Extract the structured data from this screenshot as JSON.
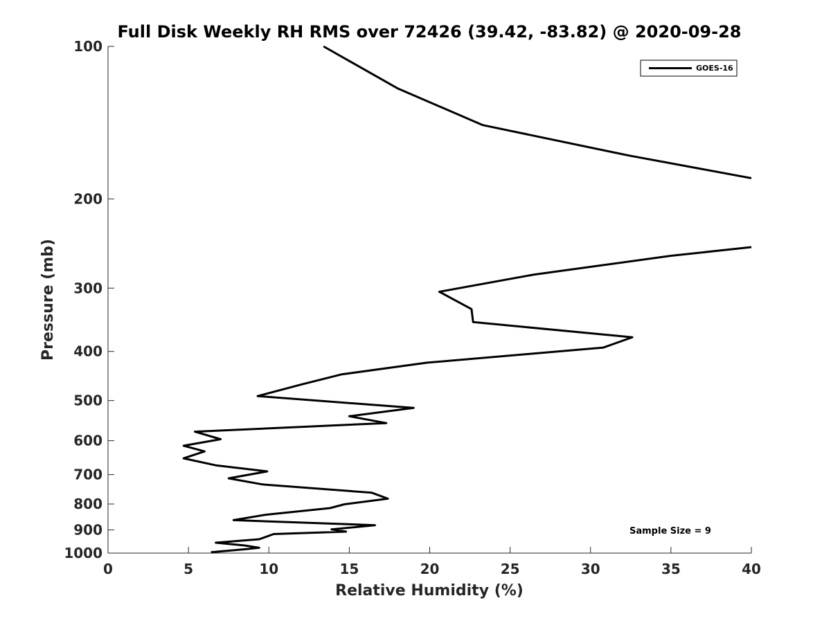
{
  "chart_data": {
    "type": "line",
    "title": "Full Disk Weekly RH RMS over 72426 (39.42, -83.82) @ 2020-09-28",
    "xlabel": "Relative Humidity (%)",
    "ylabel": "Pressure (mb)",
    "xlim": [
      0,
      40
    ],
    "ylim": [
      100,
      1000
    ],
    "yscale": "log",
    "y_reversed": true,
    "grid": false,
    "legend_position": "top-right",
    "x_ticks": [
      0,
      5,
      10,
      15,
      20,
      25,
      30,
      35,
      40
    ],
    "y_ticks": [
      100,
      200,
      300,
      400,
      500,
      600,
      700,
      800,
      900,
      1000
    ],
    "annotation": "Sample Size = 9",
    "series": [
      {
        "name": "GOES-16",
        "color": "#000000",
        "segments": [
          [
            {
              "x": 13.4,
              "y": 100
            },
            {
              "x": 18.0,
              "y": 121
            },
            {
              "x": 23.3,
              "y": 143
            },
            {
              "x": 32.3,
              "y": 164
            },
            {
              "x": 40.0,
              "y": 182
            }
          ],
          [
            {
              "x": 40.0,
              "y": 249
            },
            {
              "x": 35.0,
              "y": 259
            },
            {
              "x": 26.5,
              "y": 282
            },
            {
              "x": 20.6,
              "y": 305
            },
            {
              "x": 22.6,
              "y": 330
            },
            {
              "x": 22.7,
              "y": 350
            },
            {
              "x": 32.6,
              "y": 375
            },
            {
              "x": 30.8,
              "y": 393
            },
            {
              "x": 19.8,
              "y": 421
            },
            {
              "x": 14.5,
              "y": 444
            },
            {
              "x": 12.0,
              "y": 465
            },
            {
              "x": 9.3,
              "y": 490
            },
            {
              "x": 19.0,
              "y": 517
            },
            {
              "x": 15.0,
              "y": 537
            },
            {
              "x": 17.3,
              "y": 554
            },
            {
              "x": 5.4,
              "y": 576
            },
            {
              "x": 7.0,
              "y": 596
            },
            {
              "x": 4.7,
              "y": 614
            },
            {
              "x": 6.0,
              "y": 630
            },
            {
              "x": 4.7,
              "y": 650
            },
            {
              "x": 6.7,
              "y": 671
            },
            {
              "x": 9.9,
              "y": 690
            },
            {
              "x": 7.5,
              "y": 712
            },
            {
              "x": 9.6,
              "y": 732
            },
            {
              "x": 16.4,
              "y": 760
            },
            {
              "x": 17.4,
              "y": 781
            },
            {
              "x": 14.7,
              "y": 801
            },
            {
              "x": 13.8,
              "y": 815
            },
            {
              "x": 9.8,
              "y": 840
            },
            {
              "x": 7.8,
              "y": 861
            },
            {
              "x": 16.6,
              "y": 881
            },
            {
              "x": 13.9,
              "y": 898
            },
            {
              "x": 14.8,
              "y": 907
            },
            {
              "x": 10.3,
              "y": 917
            },
            {
              "x": 9.4,
              "y": 939
            },
            {
              "x": 6.7,
              "y": 954
            },
            {
              "x": 8.5,
              "y": 966
            },
            {
              "x": 9.4,
              "y": 976
            },
            {
              "x": 8.5,
              "y": 983
            },
            {
              "x": 6.4,
              "y": 996
            }
          ]
        ]
      }
    ]
  }
}
